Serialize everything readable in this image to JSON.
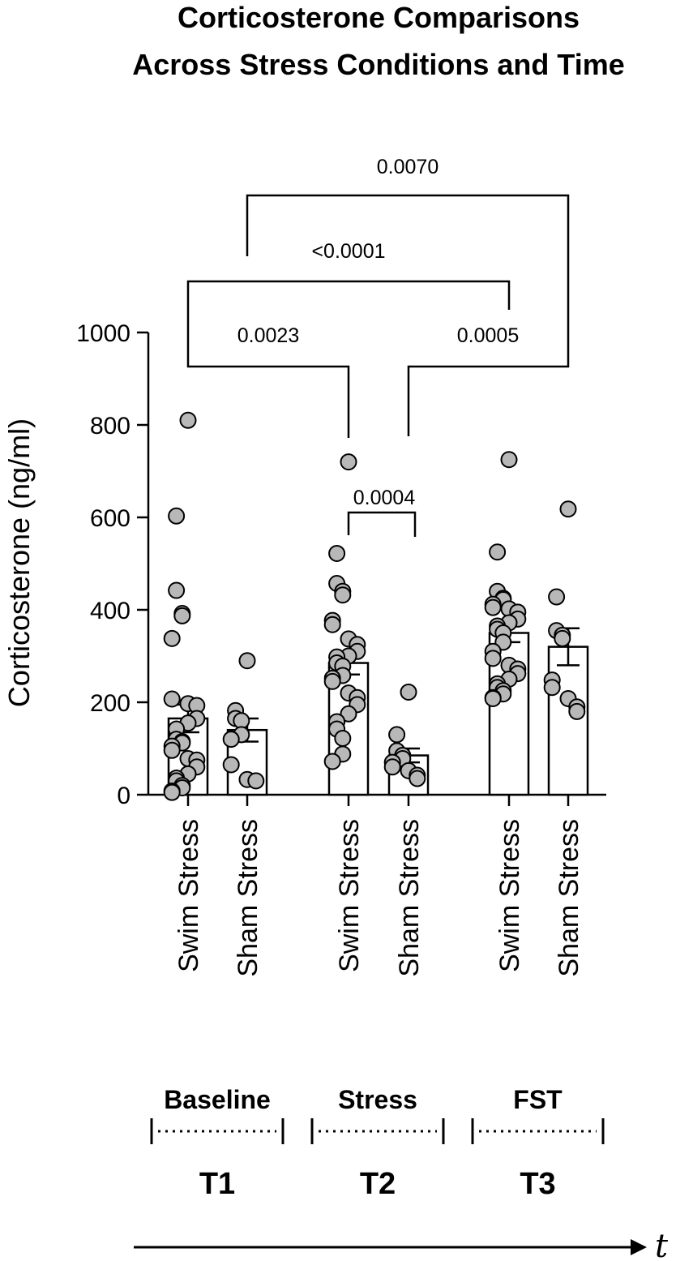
{
  "chart_data": {
    "type": "bar",
    "title_lines": [
      "Corticosterone Comparisons",
      "Across Stress Conditions and Time"
    ],
    "ylabel": "Corticosterone (ng/ml)",
    "ylim": [
      0,
      1000
    ],
    "yticks": [
      "0",
      "200",
      "400",
      "600",
      "800",
      "1000"
    ],
    "bar_color": "#ffffff",
    "point_color": "#b8b8b8",
    "categories": [
      "Swim Stress",
      "Sham Stress",
      "Swim Stress",
      "Sham Stress",
      "Swim Stress",
      "Sham Stress"
    ],
    "groups": [
      {
        "label": "Swim Stress",
        "time": "T1",
        "mean": 165,
        "sem": 30,
        "points": [
          810,
          603,
          442,
          392,
          387,
          338,
          207,
          197,
          193,
          165,
          155,
          142,
          120,
          115,
          112,
          105,
          96,
          78,
          75,
          60,
          45,
          36,
          30,
          20,
          15,
          8,
          5
        ]
      },
      {
        "label": "Sham Stress",
        "time": "T1",
        "mean": 140,
        "sem": 25,
        "points": [
          290,
          182,
          165,
          160,
          130,
          120,
          65,
          33,
          30
        ]
      },
      {
        "label": "Swim Stress",
        "time": "T2",
        "mean": 285,
        "sem": 25,
        "points": [
          720,
          522,
          457,
          440,
          432,
          377,
          368,
          337,
          325,
          310,
          300,
          298,
          285,
          278,
          258,
          252,
          245,
          220,
          210,
          195,
          175,
          158,
          142,
          122,
          88,
          72
        ]
      },
      {
        "label": "Sham Stress",
        "time": "T2",
        "mean": 85,
        "sem": 15,
        "points": [
          222,
          130,
          95,
          85,
          78,
          70,
          60,
          52,
          42,
          35
        ]
      },
      {
        "label": "Swim Stress",
        "time": "T3",
        "mean": 350,
        "sem": 20,
        "points": [
          725,
          525,
          440,
          425,
          422,
          412,
          405,
          402,
          395,
          380,
          372,
          365,
          358,
          350,
          330,
          310,
          295,
          280,
          272,
          262,
          250,
          240,
          232,
          225,
          218,
          210,
          208
        ]
      },
      {
        "label": "Sham Stress",
        "time": "T3",
        "mean": 320,
        "sem": 40,
        "points": [
          618,
          428,
          355,
          345,
          338,
          248,
          232,
          208,
          190,
          180
        ]
      }
    ],
    "comparisons": [
      {
        "p": "0.0023",
        "from": 0,
        "to": 2
      },
      {
        "p": "0.0004",
        "from": 2,
        "to": 3
      },
      {
        "p": "0.0005",
        "from": 3,
        "to": 5
      },
      {
        "p": "<0.0001",
        "from": 0,
        "to": 4
      },
      {
        "p": "0.0070",
        "from": 1,
        "to": 5
      }
    ],
    "timeline": {
      "phases": [
        {
          "name": "Baseline",
          "label": "T1"
        },
        {
          "name": "Stress",
          "label": "T2"
        },
        {
          "name": "FST",
          "label": "T3"
        }
      ],
      "axis_label": "t"
    }
  }
}
